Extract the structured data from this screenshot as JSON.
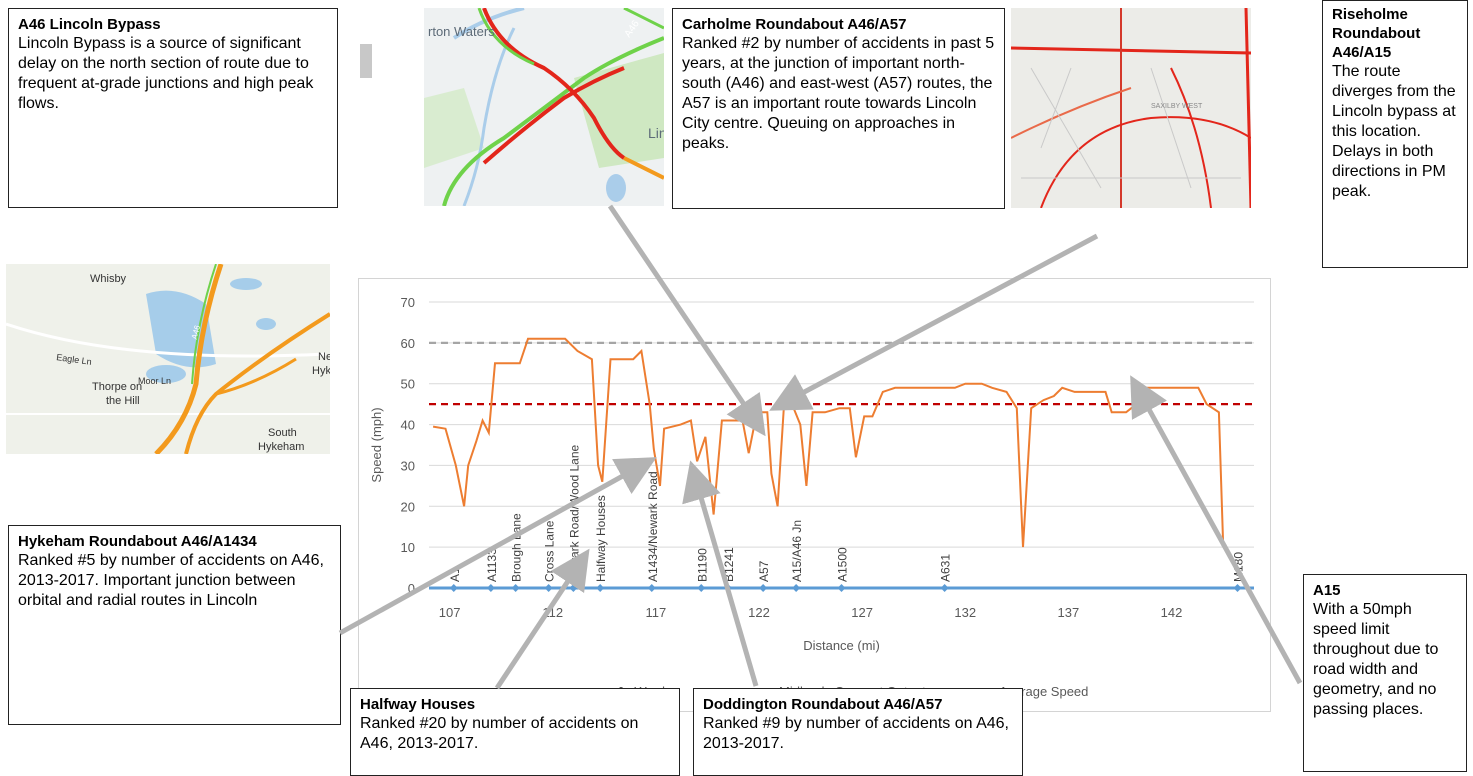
{
  "callouts": {
    "bypass": {
      "title": "A46 Lincoln Bypass",
      "text": "Lincoln Bypass is a source of significant delay on the north section of route due to frequent at-grade junctions and high peak flows."
    },
    "carholme": {
      "title": "Carholme Roundabout A46/A57",
      "text": "Ranked #2 by number of accidents in past 5 years, at the junction of important north-south (A46) and east-west (A57) routes, the A57 is an important route towards Lincoln City centre. Queuing on approaches in peaks."
    },
    "riseholme": {
      "title": "Riseholme Roundabout A46/A15",
      "text": "The route diverges from the Lincoln bypass at this location. Delays in both directions in PM peak."
    },
    "hykeham": {
      "title": "Hykeham Roundabout A46/A1434",
      "text": "Ranked #5 by number of accidents on A46, 2013-2017. Important junction between orbital and radial routes in Lincoln"
    },
    "halfway": {
      "title": "Halfway Houses",
      "text": "Ranked #20 by number of accidents on A46, 2013-2017."
    },
    "doddington": {
      "title": "Doddington Roundabout A46/A57",
      "text": "Ranked #9 by number of accidents on A46, 2013-2017."
    },
    "a15": {
      "title": "A15",
      "text": "With a 50mph speed limit throughout due to road width and geometry, and no passing places."
    }
  },
  "maps": {
    "top": {
      "labels": [
        "rton Waters",
        "Lin",
        "A46"
      ]
    },
    "left": {
      "labels": [
        "Whisby",
        "Eagle Ln",
        "Moor Ln",
        "Thorpe on",
        "the Hill",
        "South",
        "Hykeham",
        "Ne",
        "Hyk",
        "A46"
      ]
    },
    "right": {
      "labels": [
        "SAXILBY WEST"
      ]
    }
  },
  "colors": {
    "speed": "#ed7d31",
    "speed_limit": "#a5a5a5",
    "avg_speed": "#c00000",
    "junction": "#5b9bd5",
    "congestion_red": "#e3261b",
    "congestion_green": "#6fd24a",
    "congestion_orange": "#f39a1d"
  },
  "legend_partial": [
    "Jn Ward",
    "Midlands Connect Outputs",
    "Average Speed"
  ],
  "chart_data": {
    "type": "line",
    "xlabel": "Distance (mi)",
    "ylabel": "Speed (mph)",
    "xlim": [
      106,
      146
    ],
    "ylim": [
      0,
      70
    ],
    "x_ticks": [
      107,
      112,
      117,
      122,
      127,
      132,
      137,
      142
    ],
    "y_ticks": [
      0,
      10,
      20,
      30,
      40,
      50,
      60,
      70
    ],
    "grid": true,
    "series": [
      {
        "name": "Midlands Connect Outputs",
        "values_xy": [
          [
            106.2,
            39.5
          ],
          [
            106.8,
            39
          ],
          [
            107.3,
            30
          ],
          [
            107.7,
            20
          ],
          [
            107.9,
            30
          ],
          [
            108.3,
            36
          ],
          [
            108.6,
            41
          ],
          [
            108.9,
            38
          ],
          [
            109.2,
            55
          ],
          [
            110.4,
            55
          ],
          [
            110.8,
            61
          ],
          [
            111.2,
            61
          ],
          [
            112.6,
            61
          ],
          [
            113.2,
            58
          ],
          [
            113.9,
            56
          ],
          [
            114.2,
            30
          ],
          [
            114.4,
            26
          ],
          [
            114.8,
            56
          ],
          [
            115.9,
            56
          ],
          [
            116.3,
            58
          ],
          [
            116.7,
            45
          ],
          [
            116.9,
            34
          ],
          [
            117.2,
            25
          ],
          [
            117.4,
            39
          ],
          [
            118.2,
            40
          ],
          [
            118.7,
            41
          ],
          [
            119.0,
            31
          ],
          [
            119.4,
            37
          ],
          [
            119.8,
            18
          ],
          [
            120.2,
            41
          ],
          [
            121.2,
            41
          ],
          [
            121.5,
            33
          ],
          [
            121.9,
            43
          ],
          [
            122.4,
            43
          ],
          [
            122.6,
            28
          ],
          [
            122.9,
            20
          ],
          [
            123.2,
            44
          ],
          [
            123.6,
            45
          ],
          [
            124.0,
            40
          ],
          [
            124.3,
            25
          ],
          [
            124.6,
            43
          ],
          [
            125.2,
            43
          ],
          [
            125.9,
            44
          ],
          [
            126.4,
            44
          ],
          [
            126.7,
            32
          ],
          [
            127.1,
            42
          ],
          [
            127.5,
            42
          ],
          [
            128.0,
            48
          ],
          [
            128.6,
            49
          ],
          [
            131.5,
            49
          ],
          [
            132.0,
            50
          ],
          [
            132.8,
            50
          ],
          [
            133.3,
            49
          ],
          [
            134.0,
            48
          ],
          [
            134.5,
            44
          ],
          [
            134.8,
            10
          ],
          [
            135.2,
            44
          ],
          [
            135.8,
            46
          ],
          [
            136.3,
            47
          ],
          [
            136.7,
            49
          ],
          [
            137.3,
            48
          ],
          [
            138.8,
            48
          ],
          [
            139.1,
            43
          ],
          [
            139.8,
            43
          ],
          [
            140.3,
            45
          ],
          [
            140.7,
            49
          ],
          [
            143.3,
            49
          ],
          [
            143.7,
            45
          ],
          [
            144.3,
            43
          ],
          [
            144.5,
            11
          ]
        ]
      },
      {
        "name": "Speed limit",
        "values_xy": [
          [
            106,
            60
          ],
          [
            146,
            60
          ]
        ]
      },
      {
        "name": "Average Speed",
        "values_xy": [
          [
            106,
            45
          ],
          [
            146,
            45
          ]
        ]
      }
    ],
    "junctions": [
      {
        "label": "A1",
        "x": 107.2
      },
      {
        "label": "A1133",
        "x": 109.0
      },
      {
        "label": "Brough Lane",
        "x": 110.2
      },
      {
        "label": "Cross Lane",
        "x": 111.8
      },
      {
        "label": "Newark Road/Wood Lane",
        "x": 113.0
      },
      {
        "label": "Halfway Houses",
        "x": 114.3
      },
      {
        "label": "A1434/Newark Road",
        "x": 116.8
      },
      {
        "label": "B1190",
        "x": 119.2
      },
      {
        "label": "B1241",
        "x": 120.5
      },
      {
        "label": "A57",
        "x": 122.2
      },
      {
        "label": "A15/A46 Jn",
        "x": 123.8
      },
      {
        "label": "A1500",
        "x": 126.0
      },
      {
        "label": "A631",
        "x": 131.0
      },
      {
        "label": "M180",
        "x": 145.2
      }
    ]
  }
}
